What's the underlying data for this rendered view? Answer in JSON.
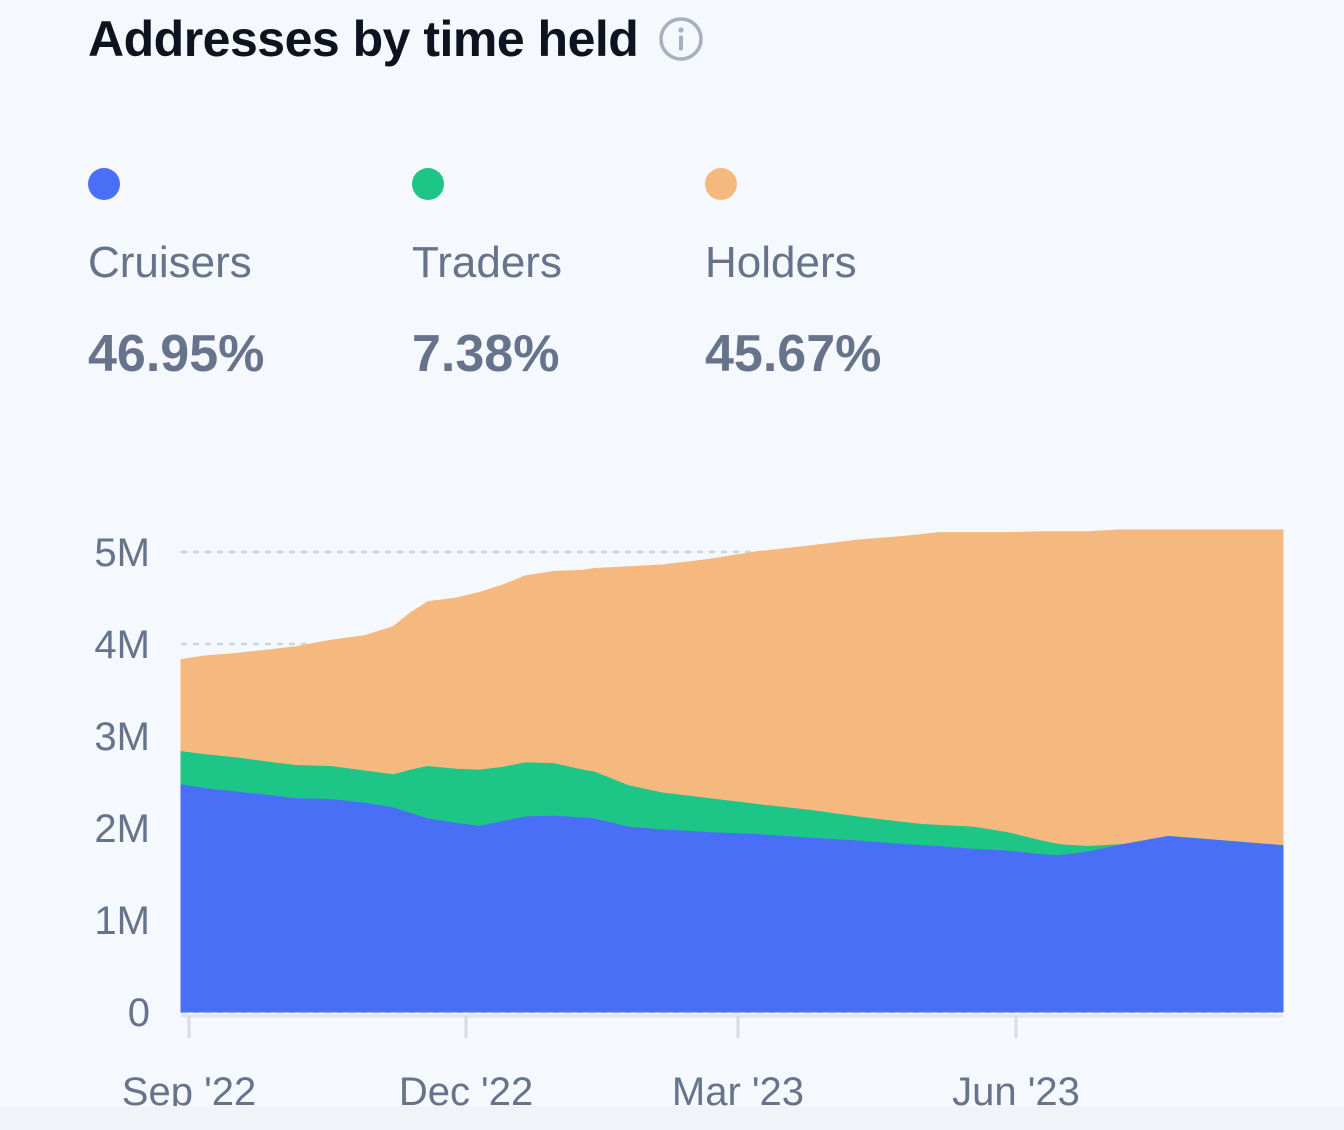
{
  "title": "Addresses by time held",
  "info_icon": "info-circle-icon",
  "legend": [
    {
      "label": "Cruisers",
      "value": "46.95%",
      "color": "#4a6ff7"
    },
    {
      "label": "Traders",
      "value": "7.38%",
      "color": "#1dc686"
    },
    {
      "label": "Holders",
      "value": "45.67%",
      "color": "#f5b97f"
    }
  ],
  "chart_data": {
    "type": "area",
    "stacked": true,
    "title": "Addresses by time held",
    "xlabel": "",
    "ylabel": "",
    "ylim": [
      0,
      5000000
    ],
    "xlim": [
      "Sep '22",
      "Sep '23"
    ],
    "x_ticks": [
      "Sep '22",
      "Dec '22",
      "Mar '23",
      "Jun '23"
    ],
    "y_ticks": [
      "0",
      "1M",
      "2M",
      "3M",
      "4M",
      "5M"
    ],
    "y_tick_values": [
      0,
      1000000,
      2000000,
      3000000,
      4000000,
      5000000
    ],
    "grid": true,
    "x": [
      0.0,
      0.2,
      0.5,
      0.8,
      1.0,
      1.3,
      1.6,
      1.85,
      2.0,
      2.15,
      2.4,
      2.6,
      2.8,
      3.0,
      3.25,
      3.5,
      3.6,
      3.9,
      4.2,
      4.6,
      5.0,
      5.5,
      5.9,
      6.3,
      6.45,
      6.6,
      6.9,
      7.2,
      7.5,
      7.65,
      7.9,
      8.2,
      8.6,
      9.0,
      9.4,
      9.6
    ],
    "series": [
      {
        "name": "Cruisers",
        "values": [
          2.48,
          2.44,
          2.4,
          2.36,
          2.33,
          2.32,
          2.28,
          2.23,
          2.17,
          2.11,
          2.06,
          2.03,
          2.08,
          2.13,
          2.14,
          2.12,
          2.11,
          2.02,
          1.99,
          1.96,
          1.94,
          1.9,
          1.87,
          1.83,
          1.82,
          1.81,
          1.78,
          1.76,
          1.72,
          1.71,
          1.75,
          1.83,
          1.92,
          1.88,
          1.84,
          1.82
        ]
      },
      {
        "name": "Traders",
        "values": [
          0.36,
          0.37,
          0.37,
          0.36,
          0.36,
          0.36,
          0.35,
          0.36,
          0.47,
          0.57,
          0.59,
          0.61,
          0.59,
          0.59,
          0.57,
          0.52,
          0.51,
          0.45,
          0.4,
          0.37,
          0.33,
          0.3,
          0.26,
          0.24,
          0.23,
          0.23,
          0.24,
          0.2,
          0.15,
          0.12,
          0.06,
          0.0,
          0.0,
          0.0,
          0.0,
          0.0
        ]
      },
      {
        "name": "Holders",
        "values": [
          0.99,
          1.06,
          1.13,
          1.22,
          1.28,
          1.36,
          1.46,
          1.6,
          1.7,
          1.78,
          1.85,
          1.92,
          1.97,
          2.02,
          2.08,
          2.16,
          2.2,
          2.37,
          2.47,
          2.59,
          2.73,
          2.87,
          3.0,
          3.1,
          3.14,
          3.17,
          3.19,
          3.25,
          3.35,
          3.39,
          3.41,
          3.41,
          3.32,
          3.36,
          3.4,
          3.42
        ]
      }
    ],
    "series_units": "millions"
  }
}
